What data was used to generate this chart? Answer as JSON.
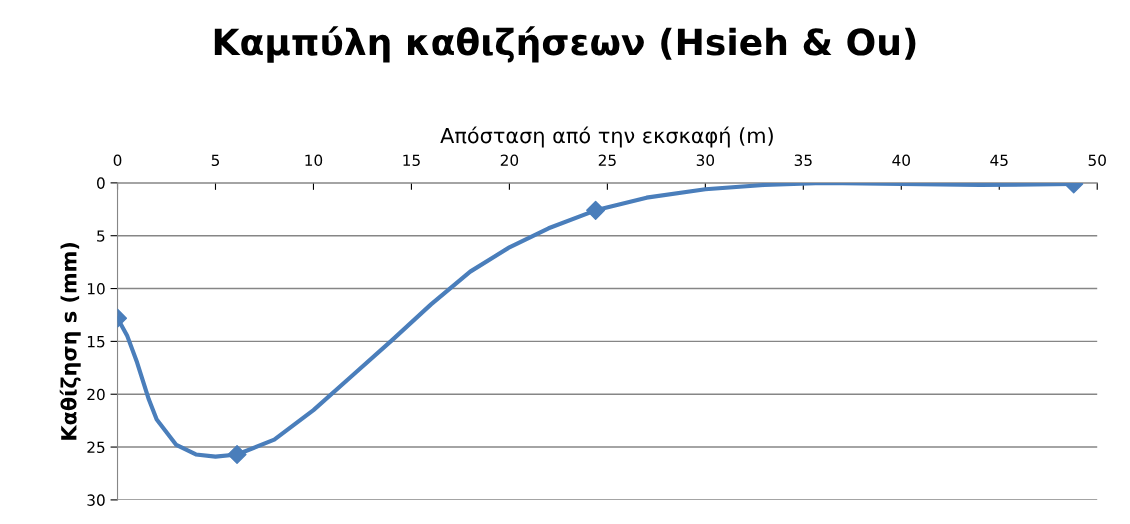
{
  "chart_data": {
    "type": "line",
    "title": "Καμπύλη καθιζήσεων (Hsieh & Ou)",
    "xlabel": "Απόσταση από την εκσκαφή (m)",
    "ylabel": "Καθίζηση s (mm)",
    "series": [
      {
        "marker": "none",
        "color": "#4a7ebb",
        "x": [
          0,
          0.5,
          1,
          1.6,
          2,
          3,
          4,
          5,
          6.1,
          8,
          10,
          12,
          14,
          16,
          18,
          20,
          22,
          24.4,
          27,
          30,
          33,
          36,
          40,
          44,
          48.8
        ],
        "values": [
          12.8,
          14.5,
          17.0,
          20.5,
          22.4,
          24.8,
          25.7,
          25.9,
          25.7,
          24.3,
          21.5,
          18.2,
          14.9,
          11.5,
          8.4,
          6.1,
          4.3,
          2.6,
          1.4,
          0.6,
          0.2,
          0.0,
          0.1,
          0.2,
          0.1
        ]
      },
      {
        "type": "scatter",
        "marker": "diamond",
        "color": "#4a7ebb",
        "x": [
          0,
          6.1,
          24.4,
          48.8
        ],
        "values": [
          12.8,
          25.7,
          2.6,
          0.1
        ]
      }
    ],
    "xlim": [
      0,
      50
    ],
    "xticks": [
      0,
      5,
      10,
      15,
      20,
      25,
      30,
      35,
      40,
      45,
      50
    ],
    "ylim": [
      30,
      0
    ],
    "yticks": [
      0,
      5,
      10,
      15,
      20,
      25,
      30
    ],
    "grid": "y",
    "line_style": "solid",
    "legend": false
  }
}
